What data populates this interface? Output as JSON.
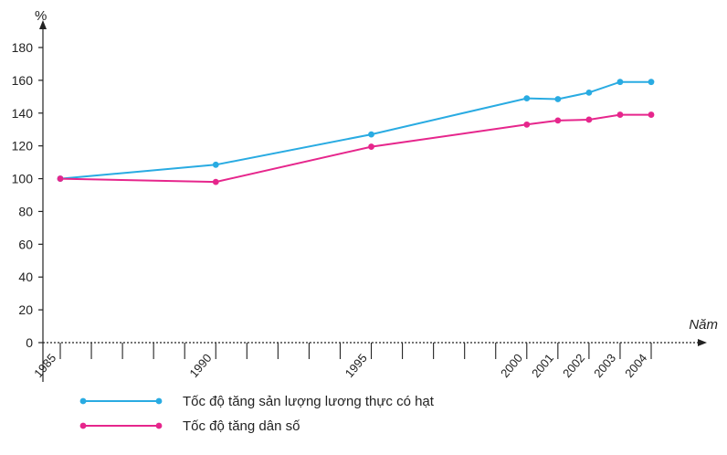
{
  "chart_data": {
    "type": "line",
    "ylabel": "%",
    "xlabel": "Năm",
    "ylim": [
      0,
      180
    ],
    "yticks": [
      "0",
      "20",
      "40",
      "60",
      "80",
      "100",
      "120",
      "140",
      "160",
      "180"
    ],
    "x_range": [
      1985,
      2004
    ],
    "xticks": [
      "1985",
      "1990",
      "1995",
      "2000",
      "2001",
      "2002",
      "2003",
      "2004"
    ],
    "series": [
      {
        "name": "Tốc độ tăng sản lượng lương thực có hạt",
        "color": "#29abe2",
        "x": [
          1985,
          1990,
          1995,
          2000,
          2001,
          2002,
          2003,
          2004
        ],
        "values": [
          100,
          108.5,
          127,
          149,
          148.5,
          152.5,
          159,
          159
        ]
      },
      {
        "name": "Tốc độ tăng dân số",
        "color": "#e6268c",
        "x": [
          1985,
          1990,
          1995,
          2000,
          2001,
          2002,
          2003,
          2004
        ],
        "values": [
          100,
          98,
          119.5,
          133,
          135.5,
          136,
          139,
          139
        ]
      }
    ],
    "grid": false,
    "legend_position": "bottom-left"
  }
}
